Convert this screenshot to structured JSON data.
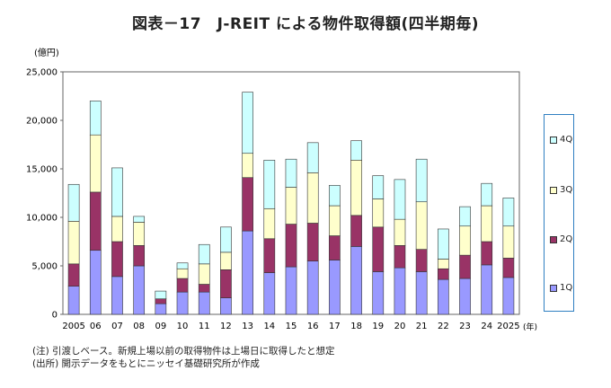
{
  "chart_data": {
    "type": "bar",
    "stacked": true,
    "title": "図表－17　J-REIT による物件取得額(四半期毎)",
    "ylabel": "(億円)",
    "xlabel_unit": "(年)",
    "ylim": [
      0,
      25000
    ],
    "yticks": [
      "0",
      "5,000",
      "10,000",
      "15,000",
      "20,000",
      "25,000"
    ],
    "categories": [
      "2005",
      "06",
      "07",
      "08",
      "09",
      "10",
      "11",
      "12",
      "13",
      "14",
      "15",
      "16",
      "17",
      "18",
      "19",
      "20",
      "21",
      "22",
      "23",
      "24",
      "2025"
    ],
    "series": [
      {
        "name": "1Q",
        "color": "#9999ff",
        "values": [
          2900,
          6600,
          3900,
          5000,
          1100,
          2300,
          2300,
          1700,
          8600,
          4300,
          4900,
          5500,
          5600,
          7000,
          4400,
          4800,
          4400,
          3600,
          3700,
          5100,
          3800
        ]
      },
      {
        "name": "2Q",
        "color": "#993366",
        "values": [
          2300,
          6000,
          3600,
          2100,
          500,
          1400,
          800,
          2900,
          5500,
          3500,
          4400,
          3900,
          2500,
          3200,
          4600,
          2300,
          2300,
          1100,
          2400,
          2400,
          2000
        ]
      },
      {
        "name": "3Q",
        "color": "#ffffcc",
        "values": [
          4400,
          5900,
          2600,
          2400,
          0,
          1000,
          2100,
          1800,
          2500,
          3100,
          3800,
          5200,
          3100,
          5700,
          2900,
          2700,
          4900,
          1000,
          3000,
          3700,
          3300
        ]
      },
      {
        "name": "4Q",
        "color": "#ccffff",
        "values": [
          3800,
          3500,
          5000,
          600,
          800,
          600,
          2000,
          2600,
          6300,
          5000,
          2900,
          3100,
          2100,
          2000,
          2400,
          4100,
          4400,
          3100,
          2000,
          2300,
          2900
        ]
      }
    ],
    "legend_position": "right",
    "grid": false
  },
  "notes": [
    "(注) 引渡しベース。新規上場以前の取得物件は上場日に取得したと想定",
    "(出所) 開示データをもとにニッセイ基礎研究所が作成"
  ]
}
